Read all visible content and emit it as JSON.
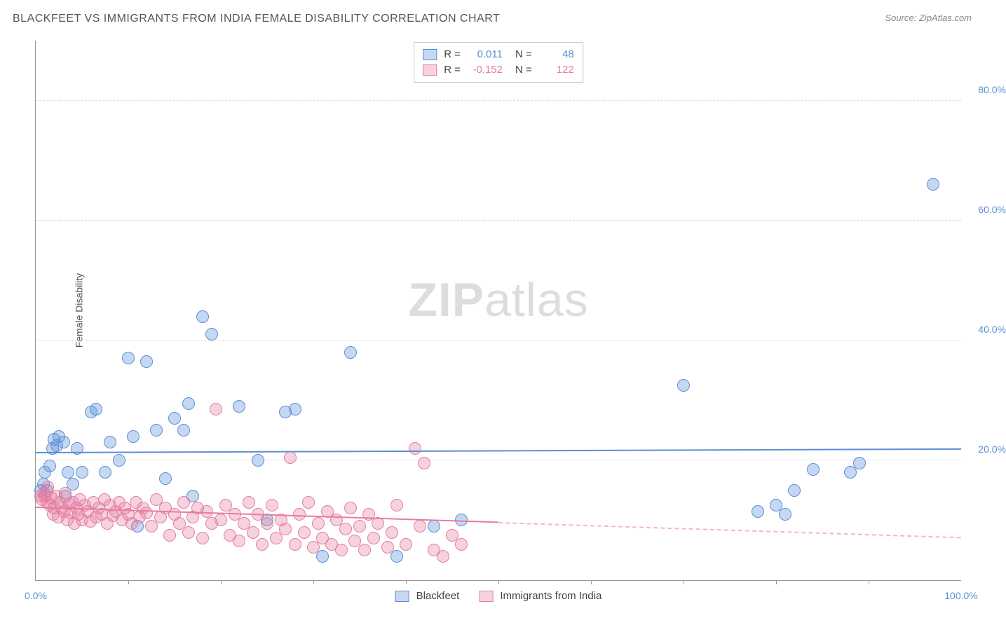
{
  "title": "BLACKFEET VS IMMIGRANTS FROM INDIA FEMALE DISABILITY CORRELATION CHART",
  "source": "Source: ZipAtlas.com",
  "ylabel": "Female Disability",
  "watermark_prefix": "ZIP",
  "watermark_suffix": "atlas",
  "chart": {
    "type": "scatter",
    "xlim": [
      0,
      100
    ],
    "ylim": [
      0,
      90
    ],
    "yticks": [
      20,
      40,
      60,
      80
    ],
    "ytick_labels": [
      "20.0%",
      "40.0%",
      "60.0%",
      "80.0%"
    ],
    "ytick_color": "#5b8fd6",
    "xticks_minor": [
      10,
      20,
      30,
      40,
      50,
      60,
      70,
      80,
      90
    ],
    "xtick_left": {
      "pos": 0,
      "label": "0.0%",
      "color": "#5b8fd6"
    },
    "xtick_right": {
      "pos": 100,
      "label": "100.0%",
      "color": "#5b8fd6"
    },
    "grid_color": "#dddddd",
    "axis_color": "#999999",
    "background_color": "#ffffff",
    "marker_radius": 9,
    "marker_border_width": 1.2,
    "marker_fill_opacity": 0.35
  },
  "series": [
    {
      "name": "Blackfeet",
      "color": "#5b8fd6",
      "fill": "rgba(91,143,214,0.35)",
      "r": "0.011",
      "n": "48",
      "trend": {
        "y_at_x0": 21.2,
        "y_at_x100": 21.8,
        "solid_until_x": 100
      },
      "points": [
        [
          0.5,
          15
        ],
        [
          0.8,
          16
        ],
        [
          1,
          18
        ],
        [
          1.2,
          15
        ],
        [
          1.5,
          19
        ],
        [
          1.8,
          22
        ],
        [
          2,
          23.5
        ],
        [
          2.3,
          22.5
        ],
        [
          2.5,
          24
        ],
        [
          3,
          23
        ],
        [
          3.2,
          14
        ],
        [
          3.5,
          18
        ],
        [
          4,
          16
        ],
        [
          4.5,
          22
        ],
        [
          5,
          18
        ],
        [
          6,
          28
        ],
        [
          6.5,
          28.5
        ],
        [
          7.5,
          18
        ],
        [
          8,
          23
        ],
        [
          9,
          20
        ],
        [
          10,
          37
        ],
        [
          10.5,
          24
        ],
        [
          11,
          9
        ],
        [
          12,
          36.5
        ],
        [
          13,
          25
        ],
        [
          14,
          17
        ],
        [
          15,
          27
        ],
        [
          16,
          25
        ],
        [
          16.5,
          29.5
        ],
        [
          17,
          14
        ],
        [
          18,
          44
        ],
        [
          19,
          41
        ],
        [
          22,
          29
        ],
        [
          24,
          20
        ],
        [
          25,
          10
        ],
        [
          27,
          28
        ],
        [
          28,
          28.5
        ],
        [
          31,
          4
        ],
        [
          34,
          38
        ],
        [
          39,
          4
        ],
        [
          43,
          9
        ],
        [
          46,
          10
        ],
        [
          70,
          32.5
        ],
        [
          78,
          11.5
        ],
        [
          80,
          12.5
        ],
        [
          81,
          11
        ],
        [
          82,
          15
        ],
        [
          84,
          18.5
        ],
        [
          88,
          18
        ],
        [
          89,
          19.5
        ],
        [
          97,
          66
        ]
      ]
    },
    {
      "name": "Immigrants from India",
      "color": "#e67da0",
      "fill": "rgba(230,125,160,0.35)",
      "r": "-0.152",
      "n": "122",
      "trend": {
        "y_at_x0": 12.0,
        "y_at_x100": 7.0,
        "solid_until_x": 50
      },
      "points": [
        [
          0.5,
          14
        ],
        [
          0.7,
          13.5
        ],
        [
          0.9,
          14.5
        ],
        [
          1,
          14
        ],
        [
          1.2,
          13
        ],
        [
          1.3,
          15.5
        ],
        [
          1.5,
          12.5
        ],
        [
          1.7,
          13.8
        ],
        [
          1.9,
          11
        ],
        [
          2,
          12
        ],
        [
          2.2,
          14
        ],
        [
          2.4,
          10.5
        ],
        [
          2.6,
          13
        ],
        [
          2.8,
          12
        ],
        [
          3,
          11.5
        ],
        [
          3.2,
          14.5
        ],
        [
          3.4,
          10
        ],
        [
          3.6,
          12.8
        ],
        [
          3.8,
          11.2
        ],
        [
          4,
          13
        ],
        [
          4.2,
          9.5
        ],
        [
          4.4,
          12
        ],
        [
          4.6,
          11
        ],
        [
          4.8,
          13.5
        ],
        [
          5,
          10
        ],
        [
          5.3,
          12.5
        ],
        [
          5.6,
          11.5
        ],
        [
          5.9,
          9.8
        ],
        [
          6.2,
          13
        ],
        [
          6.5,
          10.5
        ],
        [
          6.8,
          12
        ],
        [
          7.1,
          11
        ],
        [
          7.4,
          13.5
        ],
        [
          7.7,
          9.5
        ],
        [
          8,
          12.5
        ],
        [
          8.3,
          10.8
        ],
        [
          8.6,
          11.5
        ],
        [
          9,
          13
        ],
        [
          9.3,
          10
        ],
        [
          9.6,
          12
        ],
        [
          10,
          11
        ],
        [
          10.4,
          9.5
        ],
        [
          10.8,
          13
        ],
        [
          11.2,
          10.5
        ],
        [
          11.6,
          12
        ],
        [
          12,
          11.2
        ],
        [
          12.5,
          9
        ],
        [
          13,
          13.5
        ],
        [
          13.5,
          10.5
        ],
        [
          14,
          12
        ],
        [
          14.5,
          7.5
        ],
        [
          15,
          11
        ],
        [
          15.5,
          9.5
        ],
        [
          16,
          13
        ],
        [
          16.5,
          8
        ],
        [
          17,
          10.5
        ],
        [
          17.5,
          12
        ],
        [
          18,
          7
        ],
        [
          18.5,
          11.5
        ],
        [
          19,
          9.5
        ],
        [
          19.5,
          28.5
        ],
        [
          20,
          10
        ],
        [
          20.5,
          12.5
        ],
        [
          21,
          7.5
        ],
        [
          21.5,
          11
        ],
        [
          22,
          6.5
        ],
        [
          22.5,
          9.5
        ],
        [
          23,
          13
        ],
        [
          23.5,
          8
        ],
        [
          24,
          11
        ],
        [
          24.5,
          6
        ],
        [
          25,
          9.5
        ],
        [
          25.5,
          12.5
        ],
        [
          26,
          7
        ],
        [
          26.5,
          10
        ],
        [
          27,
          8.5
        ],
        [
          27.5,
          20.5
        ],
        [
          28,
          6
        ],
        [
          28.5,
          11
        ],
        [
          29,
          8
        ],
        [
          29.5,
          13
        ],
        [
          30,
          5.5
        ],
        [
          30.5,
          9.5
        ],
        [
          31,
          7
        ],
        [
          31.5,
          11.5
        ],
        [
          32,
          6
        ],
        [
          32.5,
          10
        ],
        [
          33,
          5
        ],
        [
          33.5,
          8.5
        ],
        [
          34,
          12
        ],
        [
          34.5,
          6.5
        ],
        [
          35,
          9
        ],
        [
          35.5,
          5
        ],
        [
          36,
          11
        ],
        [
          36.5,
          7
        ],
        [
          37,
          9.5
        ],
        [
          38,
          5.5
        ],
        [
          38.5,
          8
        ],
        [
          39,
          12.5
        ],
        [
          40,
          6
        ],
        [
          41,
          22
        ],
        [
          41.5,
          9
        ],
        [
          42,
          19.5
        ],
        [
          43,
          5
        ],
        [
          44,
          4
        ],
        [
          45,
          7.5
        ],
        [
          46,
          6
        ]
      ]
    }
  ],
  "legend_bottom": {
    "items": [
      "Blackfeet",
      "Immigrants from India"
    ]
  },
  "legend_top": {
    "r_label": "R =",
    "n_label": "N ="
  }
}
